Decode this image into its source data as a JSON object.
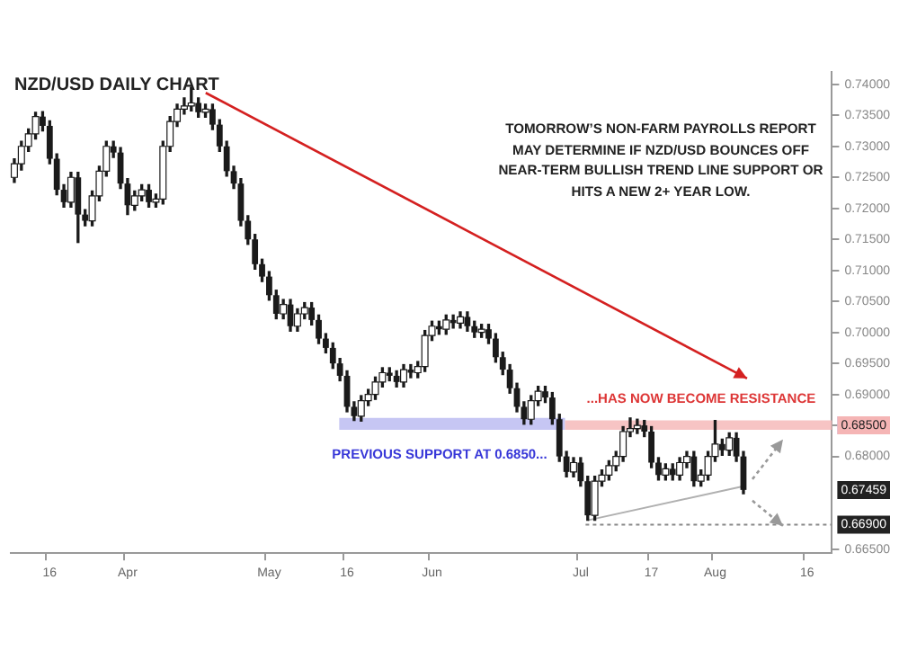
{
  "chart_data": {
    "type": "candlestick",
    "title": "NZD/USD DAILY CHART",
    "annotations": [
      "TOMORROW’S NON-FARM PAYROLLS REPORT MAY DETERMINE IF NZD/USD BOUNCES OFF NEAR-TERM BULLISH TREND LINE SUPPORT OR HITS A NEW 2+ YEAR LOW.",
      {
        "text": "0.67459",
        "y": 0.67459
      }
    ],
    "color": "#1a1a1a",
    "colors": [
      "#ffffff",
      "#ffffff",
      "#ffffff",
      "#ffffff",
      "#1a1a1a",
      "#1a1a1a",
      "#1a1a1a",
      "#1a1a1a",
      "#ffffff",
      "#1a1a1a",
      "#1a1a1a",
      "#ffffff",
      "#ffffff",
      "#ffffff",
      "#1a1a1a",
      "#1a1a1a",
      "#1a1a1a",
      "#ffffff",
      "#ffffff",
      "#1a1a1a",
      "#ffffff",
      "#ffffff",
      "#ffffff",
      "#ffffff",
      "#ffffff",
      "#ffffff",
      "#1a1a1a",
      "#ffffff",
      "#1a1a1a",
      "#1a1a1a",
      "#1a1a1a",
      "#1a1a1a",
      "#1a1a1a",
      "#1a1a1a",
      "#1a1a1a",
      "#1a1a1a",
      "#1a1a1a",
      "#1a1a1a",
      "#ffffff",
      "#1a1a1a",
      "#ffffff",
      "#ffffff",
      "#1a1a1a",
      "#1a1a1a",
      "#1a1a1a",
      "#1a1a1a",
      "#1a1a1a",
      "#1a1a1a",
      "#1a1a1a",
      "#ffffff",
      "#ffffff",
      "#ffffff",
      "#ffffff",
      "#1a1a1a",
      "#1a1a1a",
      "#ffffff",
      "#1a1a1a",
      "#ffffff",
      "#ffffff",
      "#ffffff",
      "#1a1a1a",
      "#ffffff",
      "#1a1a1a",
      "#ffffff",
      "#1a1a1a",
      "#1a1a1a",
      "#ffffff",
      "#1a1a1a",
      "#1a1a1a",
      "#1a1a1a",
      "#1a1a1a",
      "#1a1a1a",
      "#1a1a1a",
      "#ffffff",
      "#ffffff",
      "#1a1a1a",
      "#1a1a1a",
      "#1a1a1a",
      "#1a1a1a",
      "#ffffff",
      "#1a1a1a",
      "#1a1a1a",
      "#ffffff",
      "#ffffff",
      "#ffffff",
      "#ffffff",
      "#ffffff",
      "#ffffff",
      "#ffffff",
      "#1a1a1a",
      "#1a1a1a",
      "#1a1a1a",
      "#ffffff",
      "#1a1a1a",
      "#ffffff",
      "#ffffff",
      "#1a1a1a",
      "#ffffff",
      "#ffffff",
      "#ffffff",
      "#1a1a1a",
      "#ffffff",
      "#1a1a1a",
      "#1a1a1a",
      null,
      null,
      null,
      null,
      null,
      null,
      null,
      null,
      null,
      null,
      null,
      null
    ],
    "categories": [
      null,
      null,
      null,
      null,
      null,
      "16",
      null,
      null,
      null,
      null,
      null,
      null,
      null,
      null,
      null,
      null,
      "Apr",
      null,
      null,
      null,
      null,
      null,
      null,
      null,
      null,
      null,
      null,
      null,
      null,
      null,
      null,
      null,
      null,
      null,
      null,
      null,
      "May",
      null,
      null,
      null,
      null,
      null,
      null,
      null,
      null,
      null,
      null,
      "16",
      null,
      null,
      null,
      null,
      null,
      null,
      null,
      null,
      null,
      null,
      null,
      "Jun",
      null,
      null,
      null,
      null,
      null,
      null,
      null,
      null,
      null,
      null,
      null,
      null,
      null,
      null,
      null,
      null,
      null,
      null,
      null,
      null,
      "Jul",
      null,
      null,
      null,
      null,
      null,
      null,
      null,
      null,
      null,
      "17",
      null,
      null,
      null,
      null,
      null,
      null,
      null,
      null,
      "Aug",
      null,
      null,
      null,
      null,
      null,
      null,
      null,
      null,
      null,
      null,
      null,
      null,
      "16",
      null,
      null,
      null
    ],
    "ohlc": [
      [
        0.725,
        0.728,
        0.7242,
        0.7272
      ],
      [
        0.7272,
        0.7308,
        0.7262,
        0.73
      ],
      [
        0.73,
        0.7328,
        0.7292,
        0.732
      ],
      [
        0.732,
        0.7355,
        0.7312,
        0.7348
      ],
      [
        0.7348,
        0.7356,
        0.7325,
        0.7333
      ],
      [
        0.7333,
        0.7341,
        0.7272,
        0.728
      ],
      [
        0.728,
        0.7288,
        0.7222,
        0.723
      ],
      [
        0.723,
        0.7238,
        0.7202,
        0.721
      ],
      [
        0.721,
        0.7258,
        0.7202,
        0.725
      ],
      [
        0.725,
        0.7258,
        0.7145,
        0.719
      ],
      [
        0.719,
        0.7198,
        0.7172,
        0.718
      ],
      [
        0.718,
        0.7228,
        0.7172,
        0.722
      ],
      [
        0.722,
        0.7268,
        0.7212,
        0.726
      ],
      [
        0.726,
        0.7308,
        0.7252,
        0.73
      ],
      [
        0.73,
        0.7308,
        0.7282,
        0.729
      ],
      [
        0.729,
        0.7298,
        0.7232,
        0.724
      ],
      [
        0.724,
        0.7248,
        0.719,
        0.7205
      ],
      [
        0.7205,
        0.7228,
        0.7197,
        0.722
      ],
      [
        0.722,
        0.7238,
        0.7212,
        0.723
      ],
      [
        0.723,
        0.7238,
        0.7202,
        0.721
      ],
      [
        0.721,
        0.7223,
        0.7202,
        0.7215
      ],
      [
        0.7215,
        0.7308,
        0.7207,
        0.73
      ],
      [
        0.73,
        0.7348,
        0.7292,
        0.734
      ],
      [
        0.734,
        0.7368,
        0.7332,
        0.736
      ],
      [
        0.736,
        0.7378,
        0.7352,
        0.7365
      ],
      [
        0.7365,
        0.7395,
        0.7357,
        0.737
      ],
      [
        0.737,
        0.7378,
        0.7347,
        0.7355
      ],
      [
        0.7355,
        0.7368,
        0.7347,
        0.736
      ],
      [
        0.736,
        0.7368,
        0.7327,
        0.7335
      ],
      [
        0.7335,
        0.7343,
        0.7292,
        0.73
      ],
      [
        0.73,
        0.7308,
        0.7252,
        0.726
      ],
      [
        0.726,
        0.7268,
        0.7232,
        0.724
      ],
      [
        0.724,
        0.7248,
        0.7172,
        0.718
      ],
      [
        0.718,
        0.7188,
        0.7142,
        0.715
      ],
      [
        0.715,
        0.7158,
        0.7102,
        0.711
      ],
      [
        0.711,
        0.7118,
        0.7082,
        0.709
      ],
      [
        0.709,
        0.7098,
        0.7052,
        0.706
      ],
      [
        0.706,
        0.7068,
        0.7022,
        0.703
      ],
      [
        0.703,
        0.7053,
        0.7022,
        0.7045
      ],
      [
        0.7045,
        0.7053,
        0.7002,
        0.701
      ],
      [
        0.701,
        0.7038,
        0.7002,
        0.703
      ],
      [
        0.703,
        0.7048,
        0.7022,
        0.704
      ],
      [
        0.704,
        0.7048,
        0.7012,
        0.702
      ],
      [
        0.702,
        0.7028,
        0.6982,
        0.699
      ],
      [
        0.699,
        0.6998,
        0.6967,
        0.6975
      ],
      [
        0.6975,
        0.6983,
        0.6942,
        0.695
      ],
      [
        0.695,
        0.6958,
        0.6922,
        0.693
      ],
      [
        0.693,
        0.6938,
        0.6872,
        0.688
      ],
      [
        0.688,
        0.6888,
        0.6858,
        0.6865
      ],
      [
        0.6865,
        0.6898,
        0.6857,
        0.689
      ],
      [
        0.689,
        0.6908,
        0.6882,
        0.69
      ],
      [
        0.69,
        0.6928,
        0.6892,
        0.692
      ],
      [
        0.692,
        0.6943,
        0.6912,
        0.6935
      ],
      [
        0.6935,
        0.6943,
        0.6922,
        0.693
      ],
      [
        0.693,
        0.6938,
        0.6912,
        0.692
      ],
      [
        0.692,
        0.6948,
        0.6912,
        0.694
      ],
      [
        0.694,
        0.6948,
        0.6927,
        0.6935
      ],
      [
        0.6935,
        0.6953,
        0.6927,
        0.6945
      ],
      [
        0.6945,
        0.7003,
        0.6937,
        0.6995
      ],
      [
        0.6995,
        0.7018,
        0.6987,
        0.701
      ],
      [
        0.701,
        0.7018,
        0.6997,
        0.7005
      ],
      [
        0.7005,
        0.7028,
        0.6997,
        0.702
      ],
      [
        0.702,
        0.7028,
        0.7007,
        0.7015
      ],
      [
        0.7015,
        0.7033,
        0.7007,
        0.7025
      ],
      [
        0.7025,
        0.7033,
        0.7002,
        0.701
      ],
      [
        0.701,
        0.7018,
        0.6992,
        0.7
      ],
      [
        0.7,
        0.7013,
        0.6992,
        0.7005
      ],
      [
        0.7005,
        0.7013,
        0.6982,
        0.699
      ],
      [
        0.699,
        0.6998,
        0.6952,
        0.696
      ],
      [
        0.696,
        0.6968,
        0.6932,
        0.694
      ],
      [
        0.694,
        0.6948,
        0.6902,
        0.691
      ],
      [
        0.691,
        0.6918,
        0.6872,
        0.688
      ],
      [
        0.688,
        0.6888,
        0.6852,
        0.686
      ],
      [
        0.686,
        0.6898,
        0.6852,
        0.689
      ],
      [
        0.689,
        0.6913,
        0.6882,
        0.6905
      ],
      [
        0.6905,
        0.6913,
        0.6887,
        0.6895
      ],
      [
        0.6895,
        0.6903,
        0.6852,
        0.686
      ],
      [
        0.686,
        0.6868,
        0.6792,
        0.68
      ],
      [
        0.68,
        0.6808,
        0.6767,
        0.6775
      ],
      [
        0.6775,
        0.6798,
        0.6767,
        0.679
      ],
      [
        0.679,
        0.6798,
        0.6752,
        0.676
      ],
      [
        0.676,
        0.6768,
        0.6697,
        0.6705
      ],
      [
        0.6705,
        0.6768,
        0.6697,
        0.676
      ],
      [
        0.676,
        0.6778,
        0.6752,
        0.677
      ],
      [
        0.677,
        0.6793,
        0.6762,
        0.6785
      ],
      [
        0.6785,
        0.6808,
        0.6777,
        0.68
      ],
      [
        0.68,
        0.6848,
        0.6792,
        0.684
      ],
      [
        0.684,
        0.6862,
        0.6832,
        0.6845
      ],
      [
        0.6845,
        0.686,
        0.6837,
        0.685
      ],
      [
        0.685,
        0.6858,
        0.6832,
        0.684
      ],
      [
        0.684,
        0.6848,
        0.6782,
        0.679
      ],
      [
        0.679,
        0.6798,
        0.6762,
        0.677
      ],
      [
        0.677,
        0.6788,
        0.6762,
        0.678
      ],
      [
        0.678,
        0.6788,
        0.6762,
        0.677
      ],
      [
        0.677,
        0.6798,
        0.6762,
        0.679
      ],
      [
        0.679,
        0.6808,
        0.6782,
        0.68
      ],
      [
        0.68,
        0.6808,
        0.6752,
        0.676
      ],
      [
        0.676,
        0.6778,
        0.6752,
        0.677
      ],
      [
        0.677,
        0.6808,
        0.6762,
        0.68
      ],
      [
        0.68,
        0.6858,
        0.6792,
        0.682
      ],
      [
        0.682,
        0.6828,
        0.6802,
        0.681
      ],
      [
        0.681,
        0.6838,
        0.6802,
        0.683
      ],
      [
        0.683,
        0.6838,
        0.6792,
        0.68
      ],
      [
        0.68,
        0.6808,
        0.674,
        0.6746
      ],
      null,
      null,
      null,
      null,
      null,
      null,
      null,
      null,
      null,
      null,
      null,
      null
    ],
    "series": [
      {
        "type": "line",
        "color": "#b0b0b0",
        "values": [
          null,
          null,
          null,
          null,
          null,
          null,
          null,
          null,
          null,
          null,
          null,
          null,
          null,
          null,
          null,
          null,
          null,
          null,
          null,
          null,
          null,
          null,
          null,
          null,
          null,
          null,
          null,
          null,
          null,
          null,
          null,
          null,
          null,
          null,
          null,
          null,
          null,
          null,
          null,
          null,
          null,
          null,
          null,
          null,
          null,
          null,
          null,
          null,
          null,
          null,
          null,
          null,
          null,
          null,
          null,
          null,
          null,
          null,
          null,
          null,
          null,
          null,
          null,
          null,
          null,
          null,
          null,
          null,
          null,
          null,
          null,
          null,
          null,
          null,
          null,
          null,
          null,
          null,
          null,
          null,
          null,
          0.6697,
          null,
          null,
          null,
          null,
          null,
          null,
          null,
          null,
          null,
          null,
          null,
          null,
          null,
          null,
          null,
          null,
          null,
          null,
          null,
          null,
          null,
          0.6752,
          null,
          null,
          null,
          null,
          null,
          null,
          null,
          null,
          null,
          null,
          null,
          null
        ]
      }
    ],
    "ylim": [
      0.6644,
      0.742
    ],
    "yticks": [
      {
        "value": 0.665,
        "label": "0.66500"
      },
      {
        "value": 0.68,
        "label": "0.68000"
      },
      {
        "value": 0.685,
        "label": "0.68500"
      },
      {
        "value": 0.69,
        "label": "0.69000"
      },
      {
        "value": 0.695,
        "label": "0.69500"
      },
      {
        "value": 0.7,
        "label": "0.70000"
      },
      {
        "value": 0.705,
        "label": "0.70500"
      },
      {
        "value": 0.71,
        "label": "0.71000"
      },
      {
        "value": 0.715,
        "label": "0.71500"
      },
      {
        "value": 0.72,
        "label": "0.72000"
      },
      {
        "value": 0.725,
        "label": "0.72500"
      },
      {
        "value": 0.73,
        "label": "0.73000"
      },
      {
        "value": 0.735,
        "label": "0.73500"
      },
      {
        "value": 0.74,
        "label": "0.74000"
      }
    ],
    "bands": [
      {
        "axis": "y",
        "from": 0.6843,
        "to": 0.6862,
        "label": "PREVIOUS SUPPORT AT 0.6850...",
        "color": "#b8b8f0"
      },
      {
        "axis": "y",
        "from": 0.6843,
        "to": 0.6858,
        "label": "...HAS NOW BECOME RESISTANCE",
        "color": "#f5b5b5"
      }
    ],
    "ref_lines": [
      {
        "axis": "y",
        "value": 0.669,
        "label": "0.66900",
        "line_style": "dotted",
        "color": "#888888"
      }
    ]
  }
}
